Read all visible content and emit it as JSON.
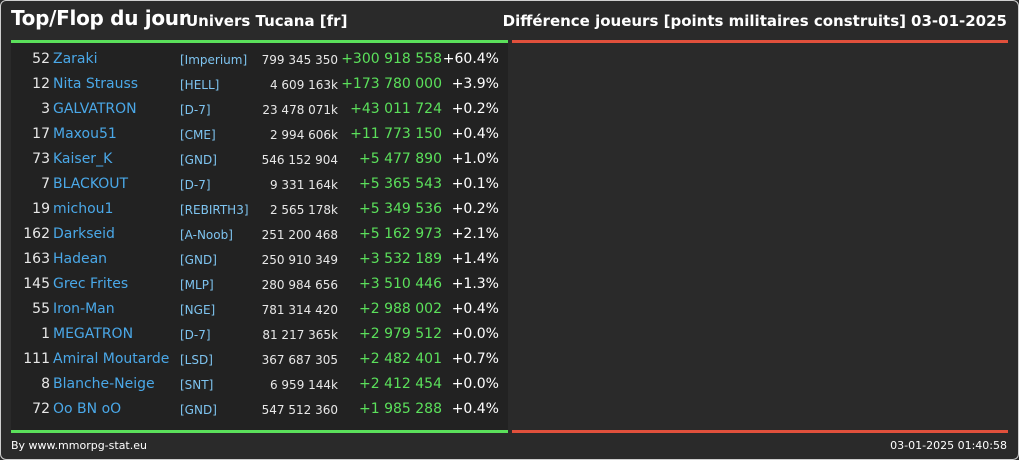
{
  "header": {
    "title": "Top/Flop du jour",
    "universe": "Univers Tucana [fr]",
    "subtitle": "Différence joueurs [points militaires construits]",
    "date": "03-01-2025"
  },
  "colors": {
    "background": "#2a2a2a",
    "top_bar": "#5be05b",
    "flop_bar": "#e0503c",
    "player_link": "#4aa8e8",
    "alliance": "#7ec4f0",
    "gain": "#5be05b"
  },
  "top": [
    {
      "rank": "52",
      "name": "Zaraki",
      "alliance": "[Imperium]",
      "points": "799 345 350",
      "diff": "+300 918 558",
      "pct": "+60.4%"
    },
    {
      "rank": "12",
      "name": "Nita Strauss",
      "alliance": "[HELL]",
      "points": "4 609 163k",
      "diff": "+173 780 000",
      "pct": "+3.9%"
    },
    {
      "rank": "3",
      "name": "GALVATRON",
      "alliance": "[D-7]",
      "points": "23 478 071k",
      "diff": "+43 011 724",
      "pct": "+0.2%"
    },
    {
      "rank": "17",
      "name": "Maxou51",
      "alliance": "[CME]",
      "points": "2 994 606k",
      "diff": "+11 773 150",
      "pct": "+0.4%"
    },
    {
      "rank": "73",
      "name": "Kaiser_K",
      "alliance": "[GND]",
      "points": "546 152 904",
      "diff": "+5 477 890",
      "pct": "+1.0%"
    },
    {
      "rank": "7",
      "name": "BLACKOUT",
      "alliance": "[D-7]",
      "points": "9 331 164k",
      "diff": "+5 365 543",
      "pct": "+0.1%"
    },
    {
      "rank": "19",
      "name": "michou1",
      "alliance": "[REBIRTH3]",
      "points": "2 565 178k",
      "diff": "+5 349 536",
      "pct": "+0.2%"
    },
    {
      "rank": "162",
      "name": "Darkseid",
      "alliance": "[A-Noob]",
      "points": "251 200 468",
      "diff": "+5 162 973",
      "pct": "+2.1%"
    },
    {
      "rank": "163",
      "name": "Hadean",
      "alliance": "[GND]",
      "points": "250 910 349",
      "diff": "+3 532 189",
      "pct": "+1.4%"
    },
    {
      "rank": "145",
      "name": "Grec Frites",
      "alliance": "[MLP]",
      "points": "280 984 656",
      "diff": "+3 510 446",
      "pct": "+1.3%"
    },
    {
      "rank": "55",
      "name": "Iron-Man",
      "alliance": "[NGE]",
      "points": "781 314 420",
      "diff": "+2 988 002",
      "pct": "+0.4%"
    },
    {
      "rank": "1",
      "name": "MEGATRON",
      "alliance": "[D-7]",
      "points": "81 217 365k",
      "diff": "+2 979 512",
      "pct": "+0.0%"
    },
    {
      "rank": "111",
      "name": "Amiral Moutarde",
      "alliance": "[LSD]",
      "points": "367 687 305",
      "diff": "+2 482 401",
      "pct": "+0.7%"
    },
    {
      "rank": "8",
      "name": "Blanche-Neige",
      "alliance": "[SNT]",
      "points": "6 959 144k",
      "diff": "+2 412 454",
      "pct": "+0.0%"
    },
    {
      "rank": "72",
      "name": "Oo BN oO",
      "alliance": "[GND]",
      "points": "547 512 360",
      "diff": "+1 985 288",
      "pct": "+0.4%"
    }
  ],
  "footer": {
    "credit": "By www.mmorpg-stat.eu",
    "timestamp": "03-01-2025 01:40:58"
  }
}
